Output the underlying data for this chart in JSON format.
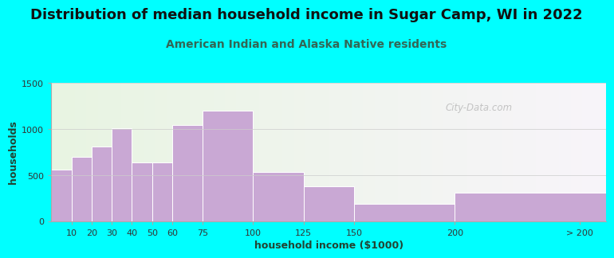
{
  "title": "Distribution of median household income in Sugar Camp, WI in 2022",
  "subtitle": "American Indian and Alaska Native residents",
  "xlabel": "household income ($1000)",
  "ylabel": "households",
  "bar_labels": [
    "10",
    "20",
    "30",
    "40",
    "50",
    "60",
    "75",
    "100",
    "125",
    "150",
    "200",
    "> 200"
  ],
  "bar_values": [
    560,
    700,
    810,
    1010,
    635,
    640,
    1040,
    1200,
    530,
    375,
    190,
    310
  ],
  "bar_color": "#C9A8D4",
  "bar_edgecolor": "#ffffff",
  "ylim": [
    0,
    1500
  ],
  "yticks": [
    0,
    500,
    1000,
    1500
  ],
  "background_outer": "#00FFFF",
  "bg_left_color": "#e8f5e2",
  "bg_right_color": "#f8f4fa",
  "title_fontsize": 13,
  "subtitle_fontsize": 10,
  "title_color": "#111111",
  "subtitle_color": "#336655",
  "axis_label_fontsize": 9,
  "watermark": "City-Data.com",
  "bar_positions": [
    0,
    10,
    20,
    30,
    40,
    50,
    60,
    75,
    100,
    125,
    150,
    200
  ],
  "bar_widths": [
    10,
    10,
    10,
    10,
    10,
    10,
    15,
    25,
    25,
    25,
    50,
    75
  ],
  "xtick_positions": [
    10,
    20,
    30,
    40,
    50,
    60,
    75,
    100,
    125,
    150,
    200,
    262
  ],
  "xlim": [
    0,
    275
  ]
}
